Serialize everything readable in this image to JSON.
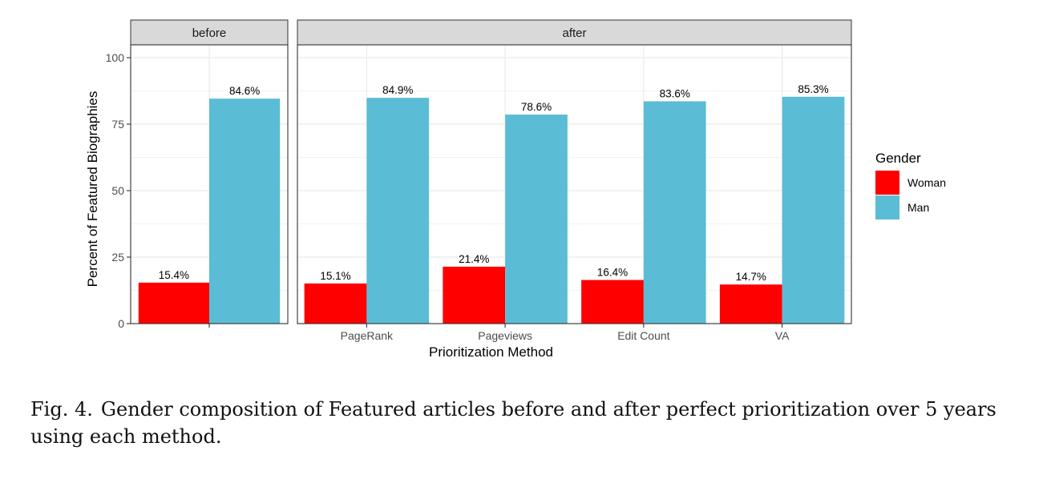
{
  "chart_data": {
    "type": "bar",
    "ylabel": "Percent of Featured Biographies",
    "xlabel": "Prioritization Method",
    "ylim": [
      0,
      100
    ],
    "yticks": [
      0,
      25,
      50,
      75,
      100
    ],
    "grid": true,
    "legend": {
      "title": "Gender",
      "position": "right",
      "entries": [
        {
          "name": "Woman",
          "color": "#ff0000"
        },
        {
          "name": "Man",
          "color": "#5bbcd6"
        }
      ]
    },
    "facets": [
      {
        "label": "before",
        "categories": [
          ""
        ],
        "series": [
          {
            "name": "Woman",
            "values": [
              15.4
            ],
            "labels": [
              "15.4%"
            ]
          },
          {
            "name": "Man",
            "values": [
              84.6
            ],
            "labels": [
              "84.6%"
            ]
          }
        ]
      },
      {
        "label": "after",
        "categories": [
          "PageRank",
          "Pageviews",
          "Edit Count",
          "VA"
        ],
        "series": [
          {
            "name": "Woman",
            "values": [
              15.1,
              21.4,
              16.4,
              14.7
            ],
            "labels": [
              "15.1%",
              "21.4%",
              "16.4%",
              "14.7%"
            ]
          },
          {
            "name": "Man",
            "values": [
              84.9,
              78.6,
              83.6,
              85.3
            ],
            "labels": [
              "84.9%",
              "78.6%",
              "83.6%",
              "85.3%"
            ]
          }
        ]
      }
    ]
  },
  "caption": {
    "label": "Fig. 4.",
    "text": "Gender composition of Featured articles before and after perfect prioritization over 5 years using each method."
  }
}
